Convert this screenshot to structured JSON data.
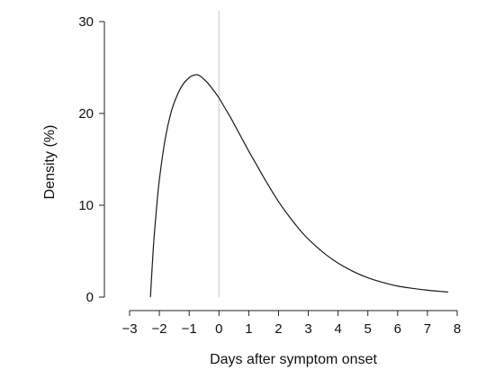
{
  "chart_data": {
    "type": "line",
    "title": "",
    "xlabel": "Days after symptom onset",
    "ylabel": "Density (%)",
    "xlim": [
      -3,
      8
    ],
    "ylim": [
      0,
      30
    ],
    "xticks": [
      -3,
      -2,
      -1,
      0,
      1,
      2,
      3,
      4,
      5,
      6,
      7,
      8
    ],
    "xtick_labels": [
      "−3",
      "−2",
      "−1",
      "0",
      "1",
      "2",
      "3",
      "4",
      "5",
      "6",
      "7",
      "8"
    ],
    "yticks": [
      0,
      10,
      20,
      30
    ],
    "ytick_labels": [
      "0",
      "10",
      "20",
      "30"
    ],
    "reference_line_x": 0,
    "reference_line_color": "#c8c8c8",
    "grid": false,
    "series": [
      {
        "color": "#1a1a1a",
        "x": [
          -2.3,
          -2.2,
          -2.1,
          -2.0,
          -1.8,
          -1.6,
          -1.4,
          -1.2,
          -1.0,
          -0.9,
          -0.8,
          -0.7,
          -0.6,
          -0.5,
          -0.4,
          -0.2,
          0.0,
          0.2,
          0.4,
          0.6,
          0.8,
          1.0,
          1.3,
          1.6,
          2.0,
          2.4,
          2.8,
          3.2,
          3.6,
          4.0,
          4.5,
          5.0,
          5.5,
          6.0,
          6.5,
          7.0,
          7.5,
          7.7
        ],
        "y": [
          0.0,
          5.5,
          9.5,
          12.8,
          17.3,
          20.2,
          22.0,
          23.2,
          23.9,
          24.1,
          24.2,
          24.2,
          24.0,
          23.7,
          23.4,
          22.6,
          21.7,
          20.6,
          19.5,
          18.3,
          17.1,
          15.9,
          14.2,
          12.5,
          10.4,
          8.6,
          7.0,
          5.7,
          4.6,
          3.7,
          2.8,
          2.1,
          1.6,
          1.2,
          0.95,
          0.75,
          0.6,
          0.55
        ]
      }
    ]
  }
}
